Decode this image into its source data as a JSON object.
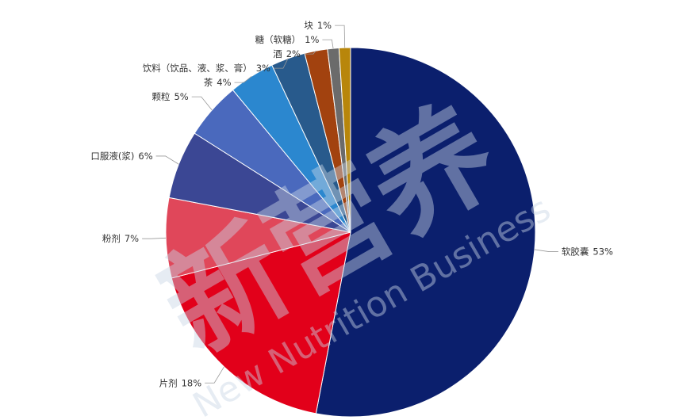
{
  "chart_data": {
    "type": "pie",
    "categories": [
      "软胶囊",
      "片剂",
      "粉剂",
      "口服液(浆)",
      "颗粒",
      "茶",
      "饮料（饮品、液、浆、膏）",
      "酒",
      "糖（软糖）",
      "块"
    ],
    "values": [
      53,
      18,
      7,
      6,
      5,
      4,
      3,
      2,
      1,
      1
    ],
    "value_labels": [
      "53%",
      "18%",
      "7%",
      "6%",
      "5%",
      "4%",
      "3%",
      "2%",
      "1%",
      "1%"
    ],
    "colors": [
      "#0b1f6d",
      "#e2001a",
      "#e0475a",
      "#3b4794",
      "#4a69bd",
      "#2b87cf",
      "#285a8c",
      "#a2420f",
      "#6b6b6b",
      "#b8860b"
    ],
    "watermark": [
      "新营养",
      "New Nutrition Business"
    ]
  }
}
